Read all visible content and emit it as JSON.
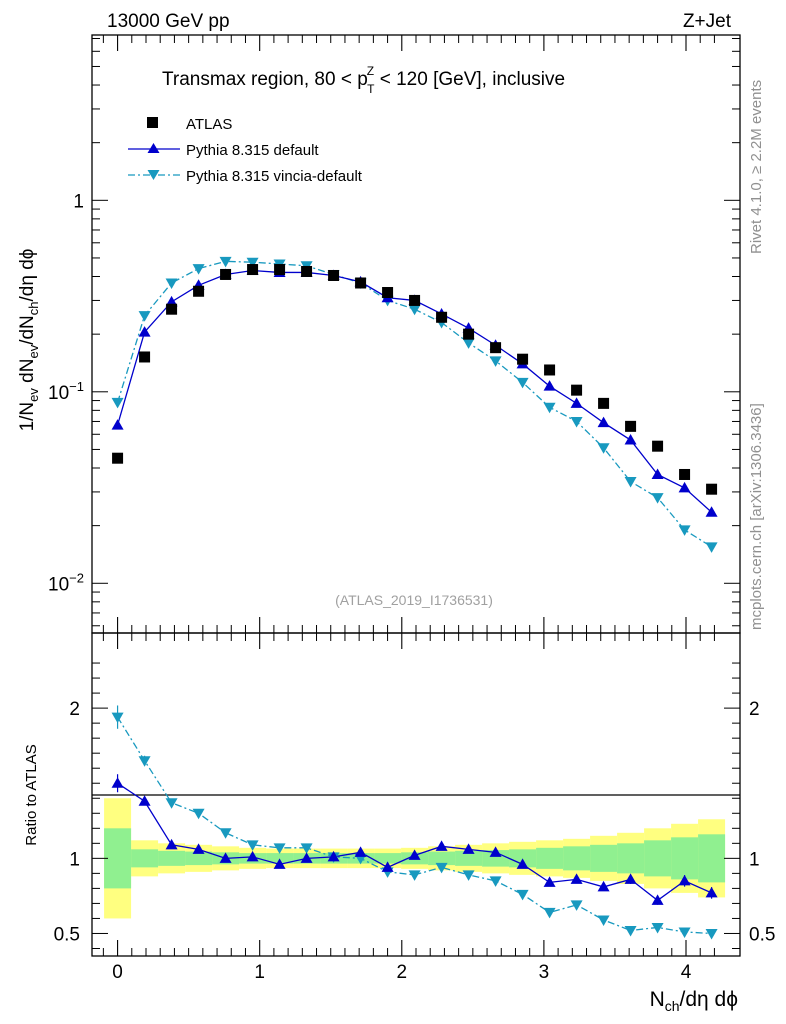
{
  "header": {
    "energy": "13000 GeV pp",
    "process": "Z+Jet",
    "title_prefix": "Transmax region, 80 < p",
    "title_sup": "Z",
    "title_sub": "T",
    "title_suffix": " < 120 [GeV], inclusive",
    "watermark": "(ATLAS_2019_I1736531)"
  },
  "side_labels": {
    "rivet": "Rivet 4.1.0, ≥ 2.2M events",
    "mcplots": "mcplots.cern.ch [arXiv:1306.3436]"
  },
  "axes": {
    "ylabel_main": "1/N_ev dN_ev/dN_ch/dη dϕ",
    "ylabel_main_parts": {
      "a": "1/N",
      "a_sub": "ev",
      "b": " dN",
      "b_sub": "ev",
      "c": "/dN",
      "c_sub": "ch",
      "d": "/dη dϕ"
    },
    "ylabel_ratio": "Ratio to ATLAS",
    "xlabel_parts": {
      "a": "N",
      "a_sub": "ch",
      "b": "/dη dϕ"
    },
    "x_ticks": [
      "0",
      "1",
      "2",
      "3",
      "4"
    ],
    "y_ticks_main": [
      {
        "base": "10",
        "exp": "−2",
        "value": 0.01
      },
      {
        "base": "10",
        "exp": "−1",
        "value": 0.1
      },
      {
        "base": "1",
        "exp": "",
        "value": 1
      }
    ],
    "y_ticks_ratio": [
      "0.5",
      "1",
      "2"
    ]
  },
  "legend": [
    {
      "label": "ATLAS",
      "color": "#000000"
    },
    {
      "label": "Pythia 8.315 default",
      "color": "#0000cc"
    },
    {
      "label": "Pythia 8.315 vincia-default",
      "color": "#1899bf"
    }
  ],
  "chart_data": {
    "type": "scatter",
    "xlabel": "N_ch/dη dϕ",
    "ylabel": "1/N_ev dN_ev/dN_ch/dη dϕ",
    "xlim": [
      -0.18,
      4.38
    ],
    "ylim": [
      0.0055,
      7.3
    ],
    "yscale": "log",
    "ratio_ylim": [
      0.35,
      2.5
    ],
    "x": [
      0,
      0.19,
      0.38,
      0.57,
      0.76,
      0.95,
      1.14,
      1.33,
      1.52,
      1.71,
      1.9,
      2.09,
      2.28,
      2.47,
      2.66,
      2.85,
      3.04,
      3.23,
      3.42,
      3.61,
      3.8,
      3.99,
      4.18
    ],
    "series": [
      {
        "name": "ATLAS",
        "values": [
          0.045,
          0.152,
          0.27,
          0.335,
          0.41,
          0.435,
          0.435,
          0.425,
          0.405,
          0.37,
          0.33,
          0.3,
          0.245,
          0.2,
          0.17,
          0.148,
          0.13,
          0.102,
          0.087,
          0.066,
          0.052,
          0.037,
          0.031
        ]
      },
      {
        "name": "Pythia 8.315 default",
        "values": [
          0.067,
          0.205,
          0.295,
          0.36,
          0.41,
          0.43,
          0.42,
          0.42,
          0.405,
          0.375,
          0.31,
          0.3,
          0.255,
          0.215,
          0.175,
          0.14,
          0.107,
          0.087,
          0.069,
          0.056,
          0.037,
          0.0315,
          0.0235
        ]
      },
      {
        "name": "Pythia 8.315 vincia-default",
        "values": [
          0.088,
          0.25,
          0.37,
          0.44,
          0.48,
          0.475,
          0.465,
          0.455,
          0.41,
          0.37,
          0.3,
          0.27,
          0.23,
          0.18,
          0.145,
          0.112,
          0.083,
          0.07,
          0.051,
          0.034,
          0.028,
          0.019,
          0.0155
        ]
      }
    ],
    "ratio": {
      "bin_edges": [
        -0.095,
        0.095,
        0.285,
        0.475,
        0.665,
        0.855,
        1.045,
        1.235,
        1.425,
        1.615,
        1.805,
        1.995,
        2.185,
        2.375,
        2.565,
        2.755,
        2.945,
        3.135,
        3.325,
        3.515,
        3.705,
        3.895,
        4.085,
        4.275
      ],
      "band_green": [
        0.2,
        0.06,
        0.05,
        0.045,
        0.04,
        0.035,
        0.035,
        0.035,
        0.035,
        0.035,
        0.035,
        0.04,
        0.045,
        0.05,
        0.055,
        0.06,
        0.07,
        0.08,
        0.09,
        0.1,
        0.12,
        0.14,
        0.16
      ],
      "band_yellow": [
        0.4,
        0.12,
        0.1,
        0.09,
        0.08,
        0.07,
        0.065,
        0.065,
        0.065,
        0.065,
        0.065,
        0.07,
        0.08,
        0.09,
        0.1,
        0.11,
        0.12,
        0.13,
        0.15,
        0.17,
        0.2,
        0.23,
        0.26
      ],
      "series": [
        {
          "name": "Pythia 8.315 default",
          "values": [
            1.5,
            1.38,
            1.09,
            1.06,
            1.0,
            1.01,
            0.96,
            1.0,
            1.01,
            1.04,
            0.94,
            1.02,
            1.08,
            1.06,
            1.04,
            0.96,
            0.84,
            0.86,
            0.81,
            0.86,
            0.72,
            0.85,
            0.77
          ]
        },
        {
          "name": "Pythia 8.315 vincia-default",
          "values": [
            1.94,
            1.65,
            1.37,
            1.3,
            1.17,
            1.09,
            1.07,
            1.07,
            1.01,
            1.0,
            0.91,
            0.89,
            0.94,
            0.89,
            0.85,
            0.76,
            0.64,
            0.69,
            0.59,
            0.52,
            0.54,
            0.51,
            0.5
          ]
        }
      ],
      "errors": [
        0.04,
        0.02,
        0.02,
        0.02,
        0.02,
        0.02,
        0.02,
        0.02,
        0.02,
        0.02,
        0.02,
        0.02,
        0.02,
        0.02,
        0.02,
        0.02,
        0.025,
        0.025,
        0.03,
        0.035,
        0.04,
        0.045,
        0.05
      ]
    }
  }
}
